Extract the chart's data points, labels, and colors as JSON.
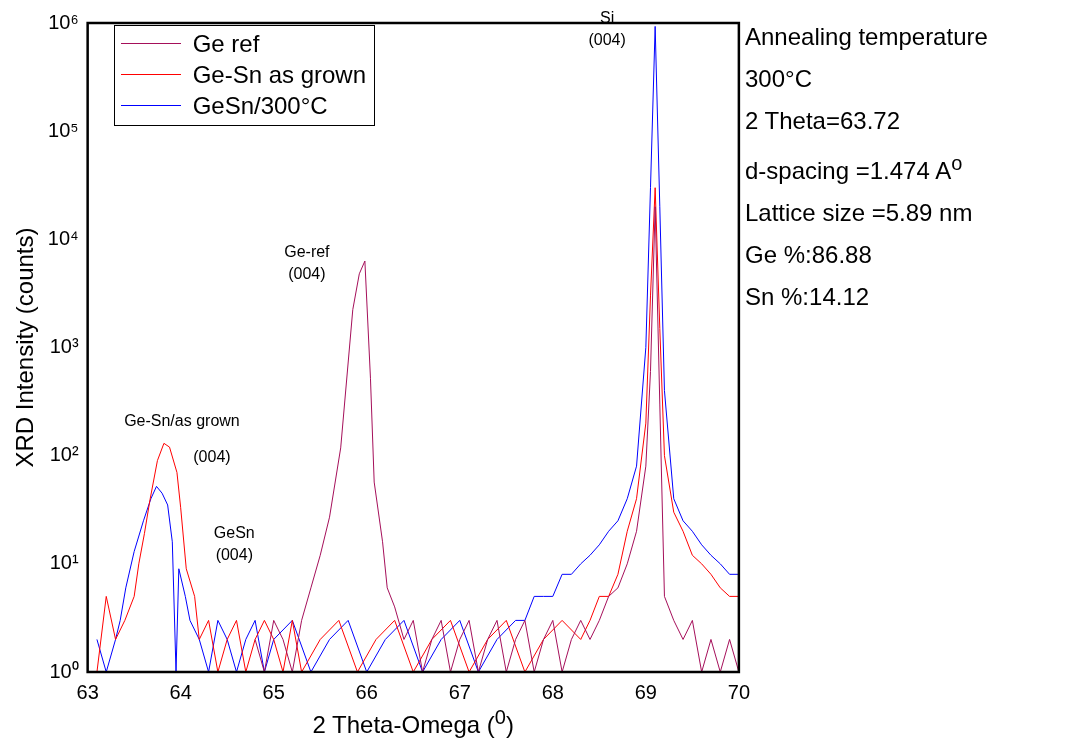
{
  "chart_data": {
    "type": "line",
    "xlabel": "2 Theta-Omega ($^{0}$)",
    "ylabel": "XRD Intensity (counts)",
    "xlim": [
      63,
      70
    ],
    "xticks": [
      63,
      64,
      65,
      66,
      67,
      68,
      69,
      70
    ],
    "ylim": [
      1,
      1000000
    ],
    "yticks": [
      {
        "value": 1,
        "label": "10⁰"
      },
      {
        "value": 10,
        "label": "10¹"
      },
      {
        "value": 100,
        "label": "10²"
      },
      {
        "value": 1000,
        "label": "10³"
      },
      {
        "value": 10000,
        "label": "10⁴"
      },
      {
        "value": 100000,
        "label": "10⁵"
      },
      {
        "value": 1000000,
        "label": "10⁶"
      }
    ],
    "log": "y",
    "grid": false,
    "legend": "top left",
    "marker": "none",
    "line_style": "solid",
    "series": [
      {
        "name": "Ge ref",
        "color": "#a50f5a",
        "x": [
          64.8,
          64.9,
          65.0,
          65.1,
          65.2,
          65.3,
          65.4,
          65.5,
          65.6,
          65.72,
          65.85,
          65.92,
          65.98,
          66.04,
          66.08,
          66.17,
          66.22,
          66.3,
          66.4,
          66.5,
          66.6,
          66.7,
          66.8,
          66.9,
          67.0,
          67.1,
          67.2,
          67.3,
          67.4,
          67.5,
          67.6,
          67.7,
          67.8,
          67.9,
          68.0,
          68.1,
          68.2,
          68.3,
          68.4,
          68.5,
          68.6,
          68.7,
          68.8,
          68.9,
          69.0,
          69.05,
          69.1,
          69.15,
          69.2,
          69.3,
          69.4,
          69.5,
          69.6,
          69.7,
          69.8,
          69.9,
          70.0
        ],
        "values": [
          2,
          1,
          3,
          2,
          1,
          3,
          6,
          12,
          27,
          118,
          2240,
          4800,
          6300,
          520,
          57,
          16,
          6,
          4,
          2,
          3,
          1,
          2,
          3,
          1,
          2,
          3,
          1,
          2,
          3,
          1,
          2,
          3,
          1,
          2,
          3,
          1,
          2,
          3,
          2,
          3,
          5,
          6,
          10,
          20,
          80,
          600,
          20000,
          300,
          5,
          3,
          2,
          3,
          1,
          2,
          1,
          2,
          1
        ]
      },
      {
        "name": "Ge-Sn as grown",
        "color": "#ff0000",
        "x": [
          63.1,
          63.2,
          63.3,
          63.4,
          63.5,
          63.55,
          63.61,
          63.67,
          63.75,
          63.82,
          63.88,
          63.96,
          64.0,
          64.06,
          64.15,
          64.2,
          64.3,
          64.4,
          64.5,
          64.6,
          64.7,
          64.8,
          64.9,
          65.0,
          65.1,
          65.2,
          65.3,
          65.5,
          65.7,
          65.9,
          66.1,
          66.3,
          66.5,
          66.7,
          66.9,
          67.1,
          67.3,
          67.5,
          67.7,
          67.9,
          68.1,
          68.3,
          68.4,
          68.5,
          68.6,
          68.7,
          68.8,
          68.9,
          69.0,
          69.05,
          69.1,
          69.15,
          69.2,
          69.3,
          69.4,
          69.5,
          69.6,
          69.7,
          69.8,
          69.9,
          70.0
        ],
        "values": [
          1,
          5,
          2,
          3,
          5,
          10,
          19,
          39,
          90,
          130,
          120,
          70,
          33,
          9,
          5,
          2,
          3,
          1,
          2,
          3,
          1,
          2,
          3,
          2,
          1,
          3,
          1,
          2,
          3,
          1,
          2,
          3,
          1,
          2,
          3,
          1,
          2,
          3,
          1,
          2,
          3,
          2,
          3,
          5,
          5,
          8,
          20,
          40,
          200,
          3000,
          30000,
          1500,
          100,
          30,
          20,
          12,
          10,
          8,
          6,
          5,
          5
        ]
      },
      {
        "name": "GeSn/300°C",
        "color": "#0000ff",
        "x": [
          63.1,
          63.2,
          63.3,
          63.35,
          63.41,
          63.5,
          63.6,
          63.68,
          63.74,
          63.8,
          63.86,
          63.91,
          63.95,
          63.98,
          64.05,
          64.1,
          64.2,
          64.3,
          64.4,
          64.5,
          64.6,
          64.7,
          64.8,
          64.9,
          65.0,
          65.2,
          65.4,
          65.6,
          65.8,
          66.0,
          66.2,
          66.4,
          66.6,
          66.8,
          67.0,
          67.2,
          67.4,
          67.6,
          67.7,
          67.8,
          67.9,
          68.0,
          68.1,
          68.2,
          68.3,
          68.4,
          68.5,
          68.6,
          68.7,
          68.8,
          68.9,
          69.0,
          69.05,
          69.1,
          69.15,
          69.2,
          69.3,
          69.4,
          69.5,
          69.6,
          69.7,
          69.8,
          69.9,
          70.0
        ],
        "values": [
          2,
          1,
          2,
          3,
          6,
          13,
          25,
          40,
          52,
          45,
          35,
          16,
          1,
          9,
          5,
          3,
          2,
          1,
          3,
          2,
          1,
          2,
          3,
          1,
          2,
          3,
          1,
          2,
          3,
          1,
          2,
          3,
          1,
          2,
          3,
          1,
          2,
          3,
          3,
          5,
          5,
          5,
          8,
          8,
          10,
          12,
          15,
          20,
          25,
          40,
          80,
          1000,
          30000,
          930000,
          20000,
          400,
          40,
          25,
          20,
          15,
          12,
          10,
          8,
          8
        ]
      }
    ],
    "annotations": [
      {
        "text": "Si\n(004)",
        "x": 69.1,
        "y": 930000
      },
      {
        "text": "Ge-ref\n(004)",
        "x": 65.98,
        "y": 6300
      },
      {
        "text": "Ge-Sn/as grown\n(004)",
        "x": 63.82,
        "y": 130
      },
      {
        "text": "GeSn\n(004)",
        "x": 63.91,
        "y": 16
      },
      "Annealing temperature",
      "300°C",
      "2 Theta=63.72",
      "d-spacing =1.474 A$^{o}$",
      "Lattice size =5.89 nm",
      "Ge %:86.88",
      "Sn %:14.12"
    ]
  }
}
